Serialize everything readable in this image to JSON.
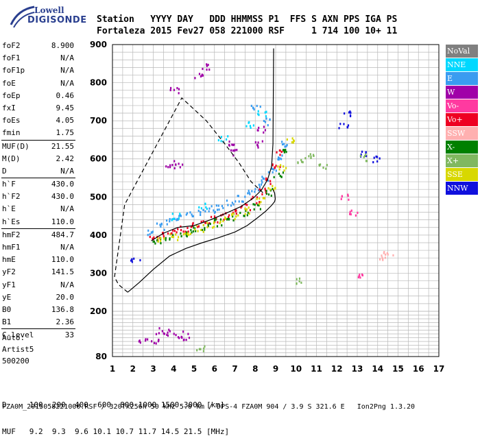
{
  "header": {
    "line1": "Station   YYYY DAY   DDD HHMMSS P1  FFS S AXN PPS IGA PS",
    "line2": "Fortaleza 2015 Fev27 058 221000 RSF     1 714 100 10+ 11"
  },
  "logo": {
    "top": "Lowell",
    "bottom": "DIGISONDE"
  },
  "params_group1": [
    {
      "label": "foF2",
      "value": "8.900"
    },
    {
      "label": "foF1",
      "value": "N/A"
    },
    {
      "label": "foF1p",
      "value": "N/A"
    },
    {
      "label": "foE",
      "value": "N/A"
    },
    {
      "label": "foEp",
      "value": "0.46"
    },
    {
      "label": "fxI",
      "value": "9.45"
    },
    {
      "label": "foEs",
      "value": "4.05"
    },
    {
      "label": "fmin",
      "value": "1.75"
    }
  ],
  "params_group2": [
    {
      "label": "MUF(D)",
      "value": "21.55"
    },
    {
      "label": "M(D)",
      "value": "2.42"
    },
    {
      "label": "D",
      "value": "N/A"
    }
  ],
  "params_group3": [
    {
      "label": "h`F",
      "value": "430.0"
    },
    {
      "label": "h`F2",
      "value": "430.0"
    },
    {
      "label": "h`E",
      "value": "N/A"
    },
    {
      "label": "h`Es",
      "value": "110.0"
    }
  ],
  "params_group4": [
    {
      "label": "hmF2",
      "value": "484.7"
    },
    {
      "label": "hmF1",
      "value": "N/A"
    },
    {
      "label": "hmE",
      "value": "110.0"
    },
    {
      "label": "yF2",
      "value": "141.5"
    },
    {
      "label": "yF1",
      "value": "N/A"
    },
    {
      "label": "yE",
      "value": "20.0"
    },
    {
      "label": "B0",
      "value": "136.8"
    },
    {
      "label": "B1",
      "value": "2.36"
    }
  ],
  "params_group5": [
    {
      "label": "C-level",
      "value": "33"
    }
  ],
  "autoscaler": {
    "line1": "Auto:",
    "line2": "Artist5",
    "line3": "500200"
  },
  "legend": [
    {
      "label": "NoVal",
      "color": "#808080"
    },
    {
      "label": "NNE",
      "color": "#00d8ff"
    },
    {
      "label": "E",
      "color": "#3a9cf0"
    },
    {
      "label": "W",
      "color": "#a000a8"
    },
    {
      "label": "Vo-",
      "color": "#ff3aa0"
    },
    {
      "label": "Vo+",
      "color": "#ee0022"
    },
    {
      "label": "SSW",
      "color": "#ffb0b0"
    },
    {
      "label": "X-",
      "color": "#008000"
    },
    {
      "label": "X+",
      "color": "#80b860"
    },
    {
      "label": "SSE",
      "color": "#d8d800"
    },
    {
      "label": "NNW",
      "color": "#1010dd"
    }
  ],
  "bottom": {
    "line1": "D     100  200  400  600  800 1000 1500 3000 [km]",
    "line2": "MUF   9.2  9.3  9.6 10.1 10.7 11.7 14.5 21.5 [MHz]"
  },
  "footer": "FZA0M_2015058221000.RSF / 320fx256h 50 kHz 5.0 km / DPS-4 FZA0M 904 / 3.9 S 321.6 E   Ion2Png 1.3.20",
  "chart_data": {
    "type": "scatter",
    "xlim": [
      1,
      17
    ],
    "ylim": [
      80,
      900
    ],
    "x_ticks": [
      "1",
      "2",
      "3",
      "4",
      "5",
      "6",
      "7",
      "8",
      "9",
      "10",
      "11",
      "12",
      "13",
      "14",
      "15",
      "16",
      "17"
    ],
    "y_ticks": [
      "80",
      "200",
      "300",
      "400",
      "500",
      "600",
      "700",
      "800",
      "900"
    ],
    "grid": true,
    "legend_position": "right",
    "series": [
      {
        "name": "E",
        "points": [
          [
            2.9,
            410
          ],
          [
            3.3,
            425
          ],
          [
            3.8,
            440
          ],
          [
            4.3,
            450
          ],
          [
            4.8,
            455
          ],
          [
            5.3,
            462
          ],
          [
            5.8,
            470
          ],
          [
            6.3,
            478
          ],
          [
            6.8,
            487
          ],
          [
            7.3,
            497
          ],
          [
            7.8,
            510
          ],
          [
            8.2,
            528
          ],
          [
            8.5,
            548
          ],
          [
            8.8,
            575
          ],
          [
            9.1,
            610
          ],
          [
            9.3,
            640
          ],
          [
            8.6,
            700
          ],
          [
            8.0,
            740
          ]
        ]
      },
      {
        "name": "Vo+",
        "points": [
          [
            3.0,
            392
          ],
          [
            3.5,
            400
          ],
          [
            4.0,
            410
          ],
          [
            4.5,
            420
          ],
          [
            5.0,
            428
          ],
          [
            5.5,
            436
          ],
          [
            6.0,
            444
          ],
          [
            6.5,
            452
          ],
          [
            7.0,
            462
          ],
          [
            7.5,
            475
          ],
          [
            8.0,
            494
          ],
          [
            8.4,
            518
          ],
          [
            8.7,
            545
          ],
          [
            9.0,
            585
          ],
          [
            9.2,
            620
          ]
        ]
      },
      {
        "name": "X-",
        "points": [
          [
            3.2,
            385
          ],
          [
            3.8,
            395
          ],
          [
            4.4,
            405
          ],
          [
            5.0,
            415
          ],
          [
            5.6,
            425
          ],
          [
            6.2,
            435
          ],
          [
            6.8,
            445
          ],
          [
            7.4,
            458
          ],
          [
            8.0,
            478
          ],
          [
            8.6,
            515
          ],
          [
            9.1,
            560
          ],
          [
            9.5,
            620
          ]
        ]
      },
      {
        "name": "SSE",
        "points": [
          [
            3.4,
            388
          ],
          [
            4.0,
            398
          ],
          [
            4.6,
            410
          ],
          [
            5.2,
            420
          ],
          [
            5.8,
            430
          ],
          [
            6.4,
            440
          ],
          [
            7.0,
            452
          ],
          [
            7.6,
            466
          ],
          [
            8.2,
            492
          ],
          [
            8.8,
            530
          ],
          [
            9.3,
            580
          ],
          [
            9.7,
            650
          ]
        ]
      },
      {
        "name": "W",
        "points": [
          [
            5.2,
            820
          ],
          [
            5.6,
            845
          ],
          [
            4.0,
            780
          ],
          [
            6.8,
            640
          ],
          [
            7.0,
            620
          ],
          [
            3.8,
            590
          ],
          [
            4.2,
            585
          ],
          [
            8.1,
            640
          ],
          [
            8.3,
            680
          ],
          [
            3.3,
            150
          ],
          [
            3.8,
            145
          ],
          [
            4.2,
            140
          ],
          [
            4.6,
            135
          ],
          [
            2.5,
            120
          ],
          [
            3.0,
            125
          ]
        ]
      },
      {
        "name": "NNE",
        "points": [
          [
            4.1,
            450
          ],
          [
            5.4,
            480
          ],
          [
            7.7,
            690
          ],
          [
            8.3,
            720
          ],
          [
            6.4,
            655
          ]
        ]
      },
      {
        "name": "NNW",
        "points": [
          [
            12.3,
            690
          ],
          [
            12.5,
            720
          ],
          [
            13.2,
            615
          ],
          [
            13.9,
            600
          ],
          [
            2.1,
            333
          ]
        ]
      },
      {
        "name": "X+",
        "points": [
          [
            10.2,
            600
          ],
          [
            10.6,
            610
          ],
          [
            11.3,
            580
          ],
          [
            13.3,
            605
          ],
          [
            10.0,
            280
          ],
          [
            5.3,
            105
          ]
        ]
      },
      {
        "name": "Vo-",
        "points": [
          [
            12.4,
            500
          ],
          [
            13.0,
            300
          ],
          [
            12.8,
            460
          ]
        ]
      },
      {
        "name": "SSW",
        "points": [
          [
            14.3,
            345
          ],
          [
            14.5,
            350
          ]
        ]
      }
    ],
    "profile_line": [
      [
        1.75,
        250
      ],
      [
        2.3,
        275
      ],
      [
        3.0,
        310
      ],
      [
        3.8,
        345
      ],
      [
        4.6,
        365
      ],
      [
        5.4,
        380
      ],
      [
        6.2,
        393
      ],
      [
        7.0,
        408
      ],
      [
        7.6,
        425
      ],
      [
        8.1,
        445
      ],
      [
        8.5,
        462
      ],
      [
        8.8,
        478
      ],
      [
        8.95,
        488
      ],
      [
        8.98,
        495
      ],
      [
        8.95,
        510
      ],
      [
        8.87,
        520
      ]
    ],
    "virtual_height_line": [
      [
        2.9,
        385
      ],
      [
        3.5,
        405
      ],
      [
        4.2,
        420
      ],
      [
        5.0,
        425
      ],
      [
        5.8,
        440
      ],
      [
        6.6,
        458
      ],
      [
        7.3,
        475
      ],
      [
        7.9,
        497
      ],
      [
        8.3,
        518
      ],
      [
        8.6,
        545
      ],
      [
        8.8,
        580
      ],
      [
        8.87,
        640
      ],
      [
        8.88,
        720
      ],
      [
        8.89,
        800
      ],
      [
        8.9,
        890
      ]
    ],
    "dashed_line": [
      [
        1.75,
        250
      ],
      [
        1.3,
        270
      ],
      [
        1.1,
        290
      ],
      [
        1.6,
        480
      ],
      [
        4.4,
        760
      ],
      [
        5.6,
        700
      ],
      [
        6.5,
        640
      ],
      [
        7.2,
        590
      ],
      [
        7.8,
        540
      ],
      [
        8.4,
        510
      ]
    ]
  }
}
